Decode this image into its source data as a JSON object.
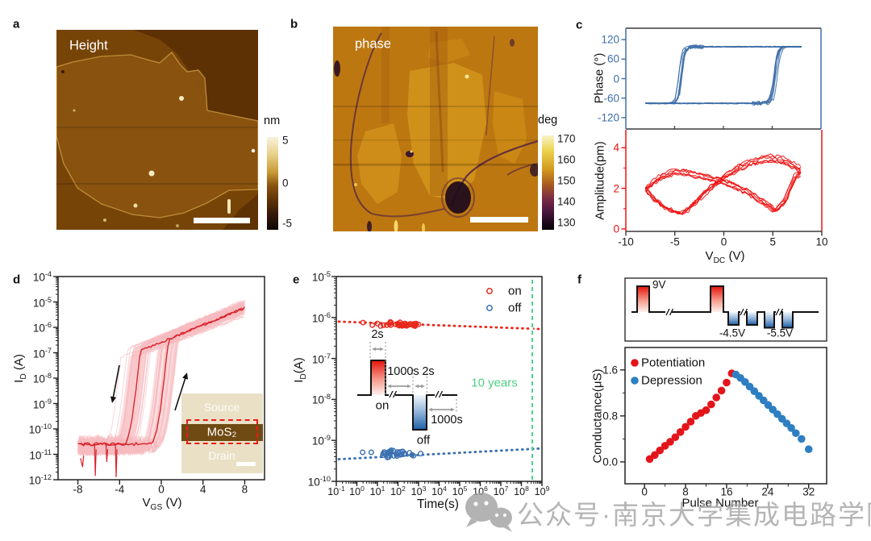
{
  "panels": {
    "a": {
      "label": "a",
      "tag": "Height",
      "colorbar_unit": "nm",
      "colorbar_ticks": [
        "5",
        "0",
        "-5"
      ]
    },
    "b": {
      "label": "b",
      "tag": "phase",
      "colorbar_unit": "deg",
      "colorbar_ticks": [
        "170",
        "160",
        "150",
        "140",
        "130"
      ]
    },
    "c": {
      "label": "c"
    },
    "d": {
      "label": "d",
      "inset": {
        "top": "Source",
        "middle": "MoS₂",
        "bottom": "Drain"
      }
    },
    "e": {
      "label": "e",
      "pulse_labels": {
        "width_on": "2s",
        "gap1": "1000s",
        "width_off": "2s",
        "on": "on",
        "off": "off",
        "gap2": "1000s"
      },
      "ten_years": "10 years"
    },
    "f": {
      "label": "f",
      "pulse_labels": {
        "set": "9V",
        "reset1": "-4.5V",
        "reset2": "-5.5V"
      }
    }
  },
  "watermark": {
    "icon": "wechat-icon",
    "text": "公众号·南京大学集成电路学院"
  },
  "chart_data": [
    {
      "id": "c-top-phase-hysteresis",
      "type": "line",
      "ylabel": "Phase (°)",
      "yticks": [
        120,
        60,
        0,
        -60,
        -120
      ],
      "ylim": [
        -155,
        155
      ],
      "xlim": [
        -10,
        10
      ],
      "x_minor_ticks": [
        -5,
        0,
        5
      ],
      "loop": {
        "x_start": -8,
        "x_end": 8,
        "low": -76,
        "high": 98,
        "switch_up": 5.35,
        "switch_down": -4.3
      },
      "n_traces": 7,
      "color": "#3f6fa8",
      "grid": false
    },
    {
      "id": "c-bottom-amplitude-butterfly",
      "type": "line",
      "ylabel": "Amplitude(pm)",
      "xlabel": {
        "main": "V",
        "sub": "DC",
        "unit": " (V)"
      },
      "yticks": [
        4,
        2,
        0
      ],
      "y_minor_ticks": [
        3,
        1
      ],
      "xticks": [
        -10,
        -5,
        0,
        5,
        10
      ],
      "ylim": [
        -0.12,
        4.88
      ],
      "xlim": [
        -10,
        10
      ],
      "branch_a": [
        [
          -8,
          1.95
        ],
        [
          -6.5,
          2.52
        ],
        [
          -5,
          2.8
        ],
        [
          -3.5,
          2.72
        ],
        [
          -2,
          2.55
        ],
        [
          -0.5,
          2.38
        ],
        [
          1,
          2.12
        ],
        [
          2.5,
          1.78
        ],
        [
          4,
          1.32
        ],
        [
          5.3,
          0.88
        ],
        [
          6.2,
          1.35
        ],
        [
          7.2,
          2.5
        ],
        [
          8,
          2.85
        ]
      ],
      "branch_b": [
        [
          -8,
          2.05
        ],
        [
          -7.2,
          1.5
        ],
        [
          -6,
          1.05
        ],
        [
          -4.7,
          0.8
        ],
        [
          -4,
          0.83
        ],
        [
          -3,
          1.3
        ],
        [
          -1.5,
          2.02
        ],
        [
          0,
          2.6
        ],
        [
          1.5,
          3.05
        ],
        [
          3,
          3.35
        ],
        [
          4.5,
          3.5
        ],
        [
          6,
          3.42
        ],
        [
          7.2,
          3.12
        ],
        [
          8,
          2.85
        ]
      ],
      "n_traces": 6,
      "color": "#ed1212",
      "grid": false
    },
    {
      "id": "d-transfer-curves",
      "type": "line",
      "ylabel": {
        "main": "I",
        "sub": "D",
        "unit": " (A)"
      },
      "xlabel": {
        "main": "V",
        "sub": "GS",
        "unit": " (V)"
      },
      "y_scale": "log",
      "ytick_exponents": [
        -4,
        -5,
        -6,
        -7,
        -8,
        -9,
        -10,
        -11,
        -12
      ],
      "xticks": [
        -8,
        -4,
        0,
        4,
        8
      ],
      "xlim": [
        -9.9,
        9.9
      ],
      "ylim_log": [
        -12,
        -4
      ],
      "sweep": {
        "floor_log": -10.7,
        "saturation_intercept": -6.55,
        "saturation_slope": 0.163,
        "vth_forward": 0.35,
        "vth_backward": -2.4,
        "rise_slope": 0.45,
        "x_start": -8,
        "x_end": 8
      },
      "n_traces": 46,
      "trace_color": "#f8bcc0",
      "highlight_color": "#d8232a",
      "grid": false
    },
    {
      "id": "e-retention",
      "type": "scatter",
      "ylabel": {
        "main": "I",
        "sub": "D",
        "unit": "(A)"
      },
      "xlabel": "Time(s)",
      "x_scale": "log",
      "y_scale": "log",
      "ytick_exponents": [
        -5,
        -6,
        -7,
        -8,
        -9,
        -10
      ],
      "xtick_exponents": [
        -1,
        0,
        1,
        2,
        3,
        4,
        5,
        6,
        7,
        8,
        9
      ],
      "series": [
        {
          "name": "on",
          "marker": "open-circle",
          "color": "#e8291d",
          "level_log": -6.16,
          "time_log_range": [
            0.15,
            3.05
          ],
          "n_points": 40,
          "trend_dotted": [
            [
              -0.88,
              -6.1
            ],
            [
              8.85,
              -6.28
            ]
          ]
        },
        {
          "name": "off",
          "marker": "open-circle",
          "color": "#3a70b0",
          "level_log": -9.33,
          "time_log_range": [
            1.25,
            3.1
          ],
          "n_points": 32,
          "trend_dotted": [
            [
              -0.88,
              -9.46
            ],
            [
              8.85,
              -9.2
            ]
          ]
        }
      ],
      "ten_years_line": {
        "x_log": 8.53,
        "color": "#4fd184",
        "style": "dashed"
      },
      "grid": false
    },
    {
      "id": "f-conductance",
      "type": "scatter",
      "ylabel": "Conductance(μS)",
      "xlabel": "Pulse Number",
      "ytick_labels": [
        "1.6",
        "0.8",
        "0.0"
      ],
      "ytick_values": [
        1.6,
        0.8,
        0.0
      ],
      "y_minor_ticks": [
        0.4,
        1.2
      ],
      "xticks": [
        0,
        8,
        16,
        24,
        32
      ],
      "x_minor_ticks": [
        4,
        12,
        20,
        28
      ],
      "ylim": [
        -0.38,
        1.99
      ],
      "xlim": [
        -3.8,
        35.5
      ],
      "series": [
        {
          "name": "Potentiation",
          "color": "#e3151b",
          "x": [
            1,
            2,
            3,
            4,
            5,
            6,
            7,
            8,
            9,
            10,
            11,
            12,
            13,
            14,
            15,
            16,
            17
          ],
          "y": [
            0.05,
            0.12,
            0.2,
            0.28,
            0.35,
            0.43,
            0.52,
            0.61,
            0.7,
            0.8,
            0.85,
            0.9,
            1.0,
            1.12,
            1.24,
            1.38,
            1.54
          ]
        },
        {
          "name": "Depression",
          "color": "#2e7fc1",
          "x": [
            17.8,
            18.7,
            19.6,
            20.5,
            21.4,
            22.3,
            23.2,
            24.1,
            25,
            25.9,
            26.8,
            27.7,
            28.6,
            29.5,
            30.6,
            32
          ],
          "y": [
            1.52,
            1.46,
            1.39,
            1.31,
            1.23,
            1.15,
            1.07,
            0.99,
            0.91,
            0.83,
            0.75,
            0.67,
            0.59,
            0.5,
            0.4,
            0.22
          ]
        }
      ],
      "grid": false
    }
  ]
}
